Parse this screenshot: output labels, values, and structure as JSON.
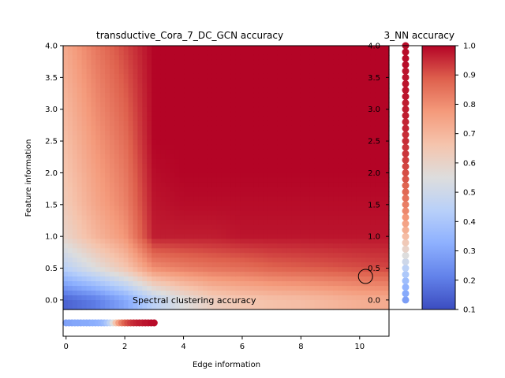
{
  "chart_data": [
    {
      "type": "heatmap",
      "title": "transductive_Cora_7_DC_GCN accuracy",
      "xlabel": "Edge information",
      "ylabel": "Feature information",
      "xlim": [
        -0.1,
        11.0
      ],
      "ylim": [
        -0.15,
        4.0
      ],
      "xticks": [
        "0",
        "2",
        "4",
        "6",
        "8",
        "10"
      ],
      "yticks": [
        "0.0",
        "0.5",
        "1.0",
        "1.5",
        "2.0",
        "2.5",
        "3.0",
        "3.5",
        "4.0"
      ],
      "colormap": "coolwarm",
      "value_range": [
        0.1,
        1.0
      ],
      "description_grid": {
        "x": [
          0,
          1,
          2,
          3,
          4,
          5,
          6,
          7,
          8,
          9,
          10,
          11
        ],
        "y": [
          0.0,
          0.5,
          1.0,
          1.5,
          2.0,
          2.5,
          3.0,
          3.5,
          4.0
        ],
        "values": [
          [
            0.15,
            0.2,
            0.3,
            0.45,
            0.55,
            0.62,
            0.65,
            0.67,
            0.68,
            0.7,
            0.72,
            0.73
          ],
          [
            0.45,
            0.55,
            0.65,
            0.8,
            0.83,
            0.85,
            0.86,
            0.88,
            0.89,
            0.9,
            0.91,
            0.92
          ],
          [
            0.6,
            0.7,
            0.78,
            0.97,
            0.97,
            0.97,
            0.98,
            0.98,
            0.98,
            0.98,
            0.98,
            0.98
          ],
          [
            0.64,
            0.74,
            0.82,
            0.98,
            0.99,
            0.99,
            0.99,
            0.99,
            0.99,
            0.99,
            0.99,
            0.99
          ],
          [
            0.66,
            0.76,
            0.84,
            0.99,
            1.0,
            1.0,
            1.0,
            1.0,
            1.0,
            1.0,
            1.0,
            1.0
          ],
          [
            0.68,
            0.78,
            0.86,
            1.0,
            1.0,
            1.0,
            1.0,
            1.0,
            1.0,
            1.0,
            1.0,
            1.0
          ],
          [
            0.7,
            0.8,
            0.88,
            1.0,
            1.0,
            1.0,
            1.0,
            1.0,
            1.0,
            1.0,
            1.0,
            1.0
          ],
          [
            0.72,
            0.82,
            0.9,
            1.0,
            1.0,
            1.0,
            1.0,
            1.0,
            1.0,
            1.0,
            1.0,
            1.0
          ],
          [
            0.74,
            0.84,
            0.92,
            1.0,
            1.0,
            1.0,
            1.0,
            1.0,
            1.0,
            1.0,
            1.0,
            1.0
          ]
        ]
      },
      "marker": {
        "x": 10.2,
        "y": 0.37
      }
    },
    {
      "type": "scatter",
      "title": "3_NN accuracy",
      "feature_information": [
        0.0,
        0.1,
        0.2,
        0.3,
        0.4,
        0.5,
        0.6,
        0.7,
        0.8,
        0.9,
        1.0,
        1.1,
        1.2,
        1.3,
        1.4,
        1.5,
        1.6,
        1.7,
        1.8,
        1.9,
        2.0,
        2.1,
        2.2,
        2.3,
        2.4,
        2.5,
        2.6,
        2.7,
        2.8,
        2.9,
        3.0,
        3.1,
        3.2,
        3.3,
        3.4,
        3.5,
        3.6,
        3.7,
        3.8,
        3.9,
        4.0
      ],
      "accuracy": [
        0.28,
        0.31,
        0.34,
        0.37,
        0.41,
        0.45,
        0.5,
        0.55,
        0.6,
        0.64,
        0.68,
        0.72,
        0.75,
        0.78,
        0.81,
        0.83,
        0.85,
        0.87,
        0.88,
        0.9,
        0.91,
        0.92,
        0.93,
        0.94,
        0.94,
        0.95,
        0.95,
        0.96,
        0.96,
        0.97,
        0.97,
        0.97,
        0.98,
        0.98,
        0.98,
        0.98,
        0.98,
        0.99,
        0.99,
        0.99,
        0.99
      ],
      "ylim": [
        -0.15,
        4.0
      ],
      "yticks": [
        "0.0",
        "0.5",
        "1.0",
        "1.5",
        "2.0",
        "2.5",
        "3.0",
        "3.5",
        "4.0"
      ]
    },
    {
      "type": "scatter",
      "title": "Spectral clustering accuracy",
      "edge_information": [
        0.0,
        0.1,
        0.2,
        0.3,
        0.4,
        0.5,
        0.6,
        0.7,
        0.8,
        0.9,
        1.0,
        1.1,
        1.2,
        1.3,
        1.4,
        1.5,
        1.6,
        1.7,
        1.8,
        1.9,
        2.0,
        2.1,
        2.2,
        2.3,
        2.4,
        2.5,
        2.6,
        2.7,
        2.8,
        2.9,
        3.0
      ],
      "accuracy": [
        0.28,
        0.29,
        0.29,
        0.3,
        0.3,
        0.3,
        0.31,
        0.31,
        0.31,
        0.32,
        0.32,
        0.33,
        0.34,
        0.36,
        0.4,
        0.46,
        0.55,
        0.66,
        0.76,
        0.83,
        0.88,
        0.91,
        0.93,
        0.95,
        0.96,
        0.97,
        0.97,
        0.98,
        0.98,
        0.99,
        0.99
      ],
      "xlim": [
        -0.1,
        11.0
      ]
    },
    {
      "type": "colorbar",
      "colormap": "coolwarm",
      "range": [
        0.1,
        1.0
      ],
      "ticks": [
        "0.1",
        "0.2",
        "0.3",
        "0.4",
        "0.5",
        "0.6",
        "0.7",
        "0.8",
        "0.9",
        "1.0"
      ]
    }
  ]
}
